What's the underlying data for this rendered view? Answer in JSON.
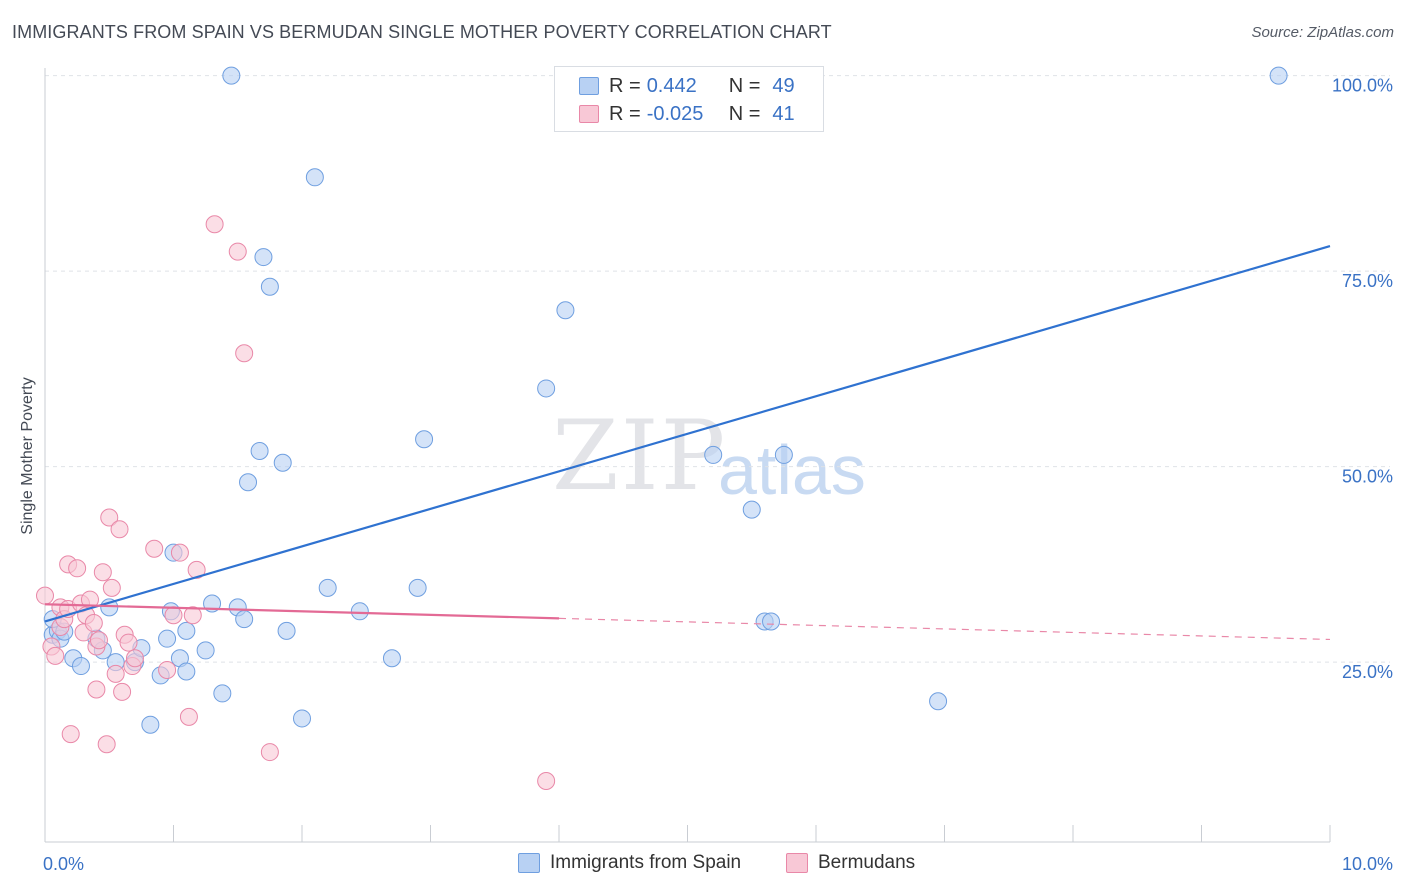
{
  "header": {
    "title": "IMMIGRANTS FROM SPAIN VS BERMUDAN SINGLE MOTHER POVERTY CORRELATION CHART",
    "source": "Source: ZipAtlas.com"
  },
  "watermark": {
    "zip": "ZIP",
    "atlas": "atlas"
  },
  "legend": {
    "rows": [
      {
        "r_label": "R =",
        "r_value": "0.442",
        "n_label": "N =",
        "n_value": "49",
        "color": "#b8d1f3"
      },
      {
        "r_label": "R =",
        "r_value": "-0.025",
        "n_label": "N =",
        "n_value": "41",
        "color": "#f8c8d6"
      }
    ]
  },
  "bottom_legend": {
    "items": [
      {
        "label": "Immigrants from Spain",
        "color": "#b8d1f3"
      },
      {
        "label": "Bermudans",
        "color": "#f8c8d6"
      }
    ]
  },
  "chart_data": {
    "type": "scatter",
    "title": "IMMIGRANTS FROM SPAIN VS BERMUDAN SINGLE MOTHER POVERTY CORRELATION CHART",
    "xlabel": "",
    "ylabel": "Single Mother Poverty",
    "xlim": [
      0,
      10
    ],
    "ylim": [
      2,
      102
    ],
    "x_tick_labels": [
      "0.0%",
      "10.0%"
    ],
    "y_ticks": [
      25,
      50,
      75,
      100
    ],
    "y_tick_labels": [
      "25.0%",
      "50.0%",
      "75.0%",
      "100.0%"
    ],
    "grid": true,
    "legend_position": "top-center",
    "series": [
      {
        "name": "Immigrants from Spain",
        "color": "#6f9fe0",
        "fill": "#b8d1f3",
        "points": [
          [
            0.06,
            28.5
          ],
          [
            0.1,
            29
          ],
          [
            0.12,
            28
          ],
          [
            0.15,
            28.9
          ],
          [
            0.06,
            30.5
          ],
          [
            0.22,
            25.5
          ],
          [
            0.28,
            24.5
          ],
          [
            0.4,
            28
          ],
          [
            0.45,
            26.5
          ],
          [
            0.55,
            25
          ],
          [
            0.5,
            32
          ],
          [
            0.7,
            25
          ],
          [
            0.75,
            26.8
          ],
          [
            0.82,
            17
          ],
          [
            0.9,
            23.3
          ],
          [
            0.95,
            28
          ],
          [
            0.98,
            31.5
          ],
          [
            1.0,
            39
          ],
          [
            1.05,
            25.5
          ],
          [
            1.1,
            23.8
          ],
          [
            1.1,
            29
          ],
          [
            1.25,
            26.5
          ],
          [
            1.3,
            32.5
          ],
          [
            1.38,
            21
          ],
          [
            1.5,
            32
          ],
          [
            1.55,
            30.5
          ],
          [
            1.45,
            100
          ],
          [
            1.58,
            48
          ],
          [
            1.67,
            52
          ],
          [
            1.7,
            76.8
          ],
          [
            1.75,
            73
          ],
          [
            1.85,
            50.5
          ],
          [
            1.88,
            29
          ],
          [
            2.0,
            17.8
          ],
          [
            2.1,
            87
          ],
          [
            2.2,
            34.5
          ],
          [
            2.45,
            31.5
          ],
          [
            2.7,
            25.5
          ],
          [
            2.9,
            34.5
          ],
          [
            2.95,
            53.5
          ],
          [
            3.9,
            60
          ],
          [
            4.05,
            70
          ],
          [
            5.2,
            51.5
          ],
          [
            5.5,
            44.5
          ],
          [
            5.6,
            30.2
          ],
          [
            5.65,
            30.2
          ],
          [
            5.75,
            51.5
          ],
          [
            6.95,
            20
          ],
          [
            9.6,
            100
          ]
        ],
        "trendline": {
          "x": [
            0,
            10
          ],
          "y": [
            30.2,
            78.2
          ]
        }
      },
      {
        "name": "Bermudans",
        "color": "#e988a8",
        "fill": "#f8c8d6",
        "points": [
          [
            0.0,
            33.5
          ],
          [
            0.05,
            27
          ],
          [
            0.08,
            25.8
          ],
          [
            0.12,
            32
          ],
          [
            0.12,
            29.5
          ],
          [
            0.15,
            30.5
          ],
          [
            0.18,
            31.8
          ],
          [
            0.18,
            37.5
          ],
          [
            0.2,
            15.8
          ],
          [
            0.25,
            37
          ],
          [
            0.28,
            32.5
          ],
          [
            0.3,
            28.8
          ],
          [
            0.32,
            31
          ],
          [
            0.35,
            33
          ],
          [
            0.38,
            30
          ],
          [
            0.4,
            27
          ],
          [
            0.42,
            27.8
          ],
          [
            0.45,
            36.5
          ],
          [
            0.4,
            21.5
          ],
          [
            0.48,
            14.5
          ],
          [
            0.5,
            43.5
          ],
          [
            0.52,
            34.5
          ],
          [
            0.55,
            23.5
          ],
          [
            0.58,
            42
          ],
          [
            0.6,
            21.2
          ],
          [
            0.62,
            28.5
          ],
          [
            0.65,
            27.5
          ],
          [
            0.68,
            24.5
          ],
          [
            0.7,
            25.5
          ],
          [
            0.85,
            39.5
          ],
          [
            0.95,
            24
          ],
          [
            1.0,
            31
          ],
          [
            1.05,
            39
          ],
          [
            1.12,
            18
          ],
          [
            1.15,
            31
          ],
          [
            1.18,
            36.8
          ],
          [
            1.32,
            81
          ],
          [
            1.5,
            77.5
          ],
          [
            1.55,
            64.5
          ],
          [
            1.75,
            13.5
          ],
          [
            3.9,
            9.8
          ]
        ],
        "trendline": {
          "x": [
            0,
            4.0
          ],
          "y": [
            32.4,
            30.6
          ]
        },
        "trendline_extension": {
          "x": [
            4.0,
            10
          ],
          "y": [
            30.6,
            27.9
          ]
        }
      }
    ]
  }
}
